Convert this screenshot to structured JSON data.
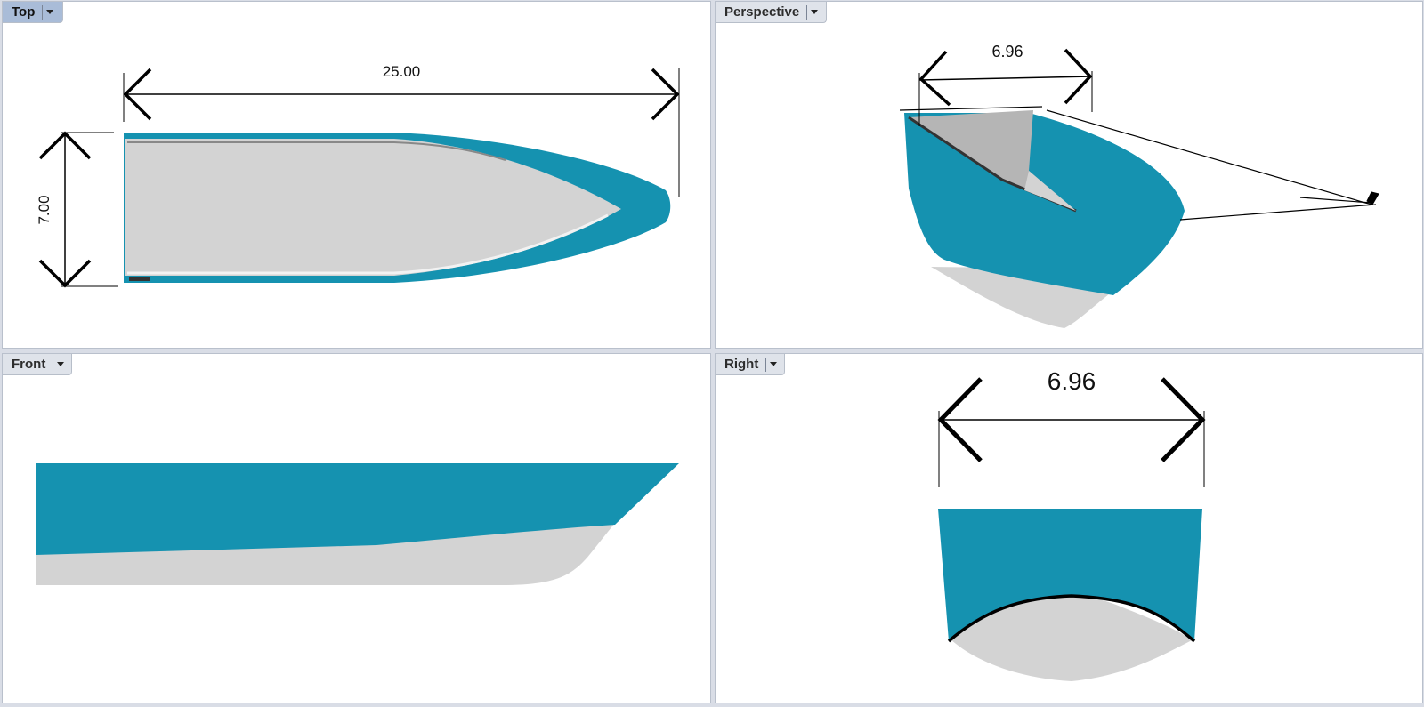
{
  "viewports": {
    "top": {
      "label": "Top",
      "active": true
    },
    "perspective": {
      "label": "Perspective",
      "active": false
    },
    "front": {
      "label": "Front",
      "active": false
    },
    "right": {
      "label": "Right",
      "active": false
    }
  },
  "dimensions": {
    "top_length": "25.00",
    "top_width": "7.00",
    "perspective_width": "6.96",
    "right_width": "6.96"
  },
  "colors": {
    "hull_side": "#1592b0",
    "hull_bottom": "#d3d3d3",
    "deck_gray": "#b5b5b5",
    "viewport_bg": "#ffffff",
    "active_tab": "#a9bcd8"
  }
}
